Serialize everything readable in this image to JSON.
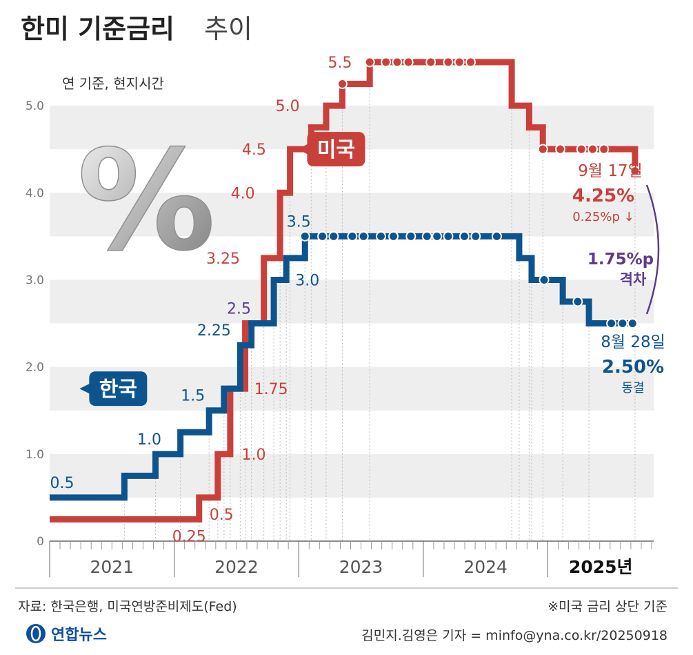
{
  "header": {
    "title_bold": "한미 기준금리",
    "title_light": "추이"
  },
  "note_unit": "연 기준, 현지시간",
  "percent_symbol": "%",
  "footer": {
    "source": "자료: 한국은행, 미국연방준비제도(Fed)",
    "footnote": "※미국 금리 상단 기준",
    "agency": "연합뉴스",
    "credit": "김민지.김영은 기자 = minfo@yna.co.kr/20250918"
  },
  "chart_data": {
    "type": "line",
    "step": true,
    "title": "한미 기준금리 추이",
    "ylim": [
      0,
      5.5
    ],
    "yticks": [
      "0",
      "1.0",
      "2.0",
      "3.0",
      "4.0",
      "5.0"
    ],
    "xlim": [
      2021.0,
      2025.85
    ],
    "x_categories": [
      "2021",
      "2022",
      "2023",
      "2024",
      "2025년"
    ],
    "grid": "horizontal bands",
    "colors": {
      "us": "#c9403b",
      "korea": "#0d548f",
      "gap": "#5c3c8a",
      "band": "#eeeeee"
    },
    "series": [
      {
        "name": "미국",
        "points": [
          {
            "x": 2021.0,
            "y": 0.25
          },
          {
            "x": 2022.2,
            "y": 0.5
          },
          {
            "x": 2022.35,
            "y": 1.0
          },
          {
            "x": 2022.45,
            "y": 1.75
          },
          {
            "x": 2022.57,
            "y": 2.5
          },
          {
            "x": 2022.72,
            "y": 3.25
          },
          {
            "x": 2022.85,
            "y": 4.0
          },
          {
            "x": 2022.93,
            "y": 4.5
          },
          {
            "x": 2023.1,
            "y": 4.75
          },
          {
            "x": 2023.22,
            "y": 5.0
          },
          {
            "x": 2023.35,
            "y": 5.25
          },
          {
            "x": 2023.57,
            "y": 5.5
          },
          {
            "x": 2024.71,
            "y": 5.0
          },
          {
            "x": 2024.85,
            "y": 4.75
          },
          {
            "x": 2024.96,
            "y": 4.5
          },
          {
            "x": 2025.7,
            "y": 4.25
          }
        ],
        "dots": [
          {
            "x": 2023.35,
            "y": 5.25
          },
          {
            "x": 2023.57,
            "y": 5.5
          },
          {
            "x": 2023.7,
            "y": 5.5
          },
          {
            "x": 2023.79,
            "y": 5.5
          },
          {
            "x": 2023.88,
            "y": 5.5
          },
          {
            "x": 2024.06,
            "y": 5.5
          },
          {
            "x": 2024.2,
            "y": 5.5
          },
          {
            "x": 2024.29,
            "y": 5.5
          },
          {
            "x": 2024.38,
            "y": 5.5
          },
          {
            "x": 2024.96,
            "y": 4.5
          },
          {
            "x": 2025.1,
            "y": 4.5
          },
          {
            "x": 2025.27,
            "y": 4.5
          },
          {
            "x": 2025.36,
            "y": 4.5
          },
          {
            "x": 2025.45,
            "y": 4.5
          },
          {
            "x": 2025.7,
            "y": 4.25
          }
        ]
      },
      {
        "name": "한국",
        "points": [
          {
            "x": 2021.0,
            "y": 0.5
          },
          {
            "x": 2021.6,
            "y": 0.75
          },
          {
            "x": 2021.85,
            "y": 1.0
          },
          {
            "x": 2022.05,
            "y": 1.25
          },
          {
            "x": 2022.28,
            "y": 1.5
          },
          {
            "x": 2022.4,
            "y": 1.75
          },
          {
            "x": 2022.53,
            "y": 2.25
          },
          {
            "x": 2022.62,
            "y": 2.5
          },
          {
            "x": 2022.8,
            "y": 3.0
          },
          {
            "x": 2022.9,
            "y": 3.25
          },
          {
            "x": 2023.05,
            "y": 3.5
          },
          {
            "x": 2024.77,
            "y": 3.25
          },
          {
            "x": 2024.87,
            "y": 3.0
          },
          {
            "x": 2025.12,
            "y": 2.75
          },
          {
            "x": 2025.33,
            "y": 2.5
          },
          {
            "x": 2025.7,
            "y": 2.5
          }
        ],
        "dots": [
          {
            "x": 2023.05,
            "y": 3.5
          },
          {
            "x": 2023.19,
            "y": 3.5
          },
          {
            "x": 2023.28,
            "y": 3.5
          },
          {
            "x": 2023.43,
            "y": 3.5
          },
          {
            "x": 2023.52,
            "y": 3.5
          },
          {
            "x": 2023.66,
            "y": 3.5
          },
          {
            "x": 2023.76,
            "y": 3.5
          },
          {
            "x": 2023.9,
            "y": 3.5
          },
          {
            "x": 2024.03,
            "y": 3.5
          },
          {
            "x": 2024.11,
            "y": 3.5
          },
          {
            "x": 2024.2,
            "y": 3.5
          },
          {
            "x": 2024.33,
            "y": 3.5
          },
          {
            "x": 2024.42,
            "y": 3.5
          },
          {
            "x": 2024.59,
            "y": 3.5
          },
          {
            "x": 2024.97,
            "y": 3.0
          },
          {
            "x": 2025.24,
            "y": 2.75
          },
          {
            "x": 2025.51,
            "y": 2.5
          },
          {
            "x": 2025.6,
            "y": 2.5
          },
          {
            "x": 2025.68,
            "y": 2.5
          }
        ]
      }
    ],
    "value_labels": [
      {
        "series": "미국",
        "text": "0.25",
        "x": 2022.12,
        "y": 0.25,
        "pos": "below"
      },
      {
        "series": "미국",
        "text": "0.5",
        "x": 2022.38,
        "y": 0.5,
        "pos": "below"
      },
      {
        "series": "미국",
        "text": "1.0",
        "x": 2022.52,
        "y": 1.0,
        "pos": "right"
      },
      {
        "series": "미국",
        "text": "1.75",
        "x": 2022.62,
        "y": 1.75,
        "pos": "right"
      },
      {
        "series": "미국",
        "text": "3.25",
        "x": 2022.55,
        "y": 3.25,
        "pos": "left"
      },
      {
        "series": "미국",
        "text": "4.0",
        "x": 2022.67,
        "y": 4.0,
        "pos": "left"
      },
      {
        "series": "미국",
        "text": "4.5",
        "x": 2022.76,
        "y": 4.5,
        "pos": "left"
      },
      {
        "series": "미국",
        "text": "5.0",
        "x": 2023.03,
        "y": 5.0,
        "pos": "left"
      },
      {
        "series": "미국",
        "text": "5.5",
        "x": 2023.45,
        "y": 5.5,
        "pos": "left"
      },
      {
        "series": "한국",
        "text": "0.5",
        "x": 2021.1,
        "y": 0.5,
        "pos": "above"
      },
      {
        "series": "한국",
        "text": "1.0",
        "x": 2021.8,
        "y": 1.0,
        "pos": "above"
      },
      {
        "series": "한국",
        "text": "1.5",
        "x": 2022.15,
        "y": 1.5,
        "pos": "above"
      },
      {
        "series": "한국",
        "text": "2.25",
        "x": 2022.32,
        "y": 2.25,
        "pos": "above"
      },
      {
        "series": "한국",
        "text": "2.5",
        "x": 2022.52,
        "y": 2.5,
        "pos": "above",
        "color": "gap"
      },
      {
        "series": "한국",
        "text": "3.0",
        "x": 2022.95,
        "y": 3.0,
        "pos": "right"
      },
      {
        "series": "한국",
        "text": "3.5",
        "x": 2023.0,
        "y": 3.5,
        "pos": "above"
      }
    ],
    "series_tags": [
      {
        "series": "미국",
        "text": "미국",
        "x": 2023.3,
        "y": 4.5
      },
      {
        "series": "한국",
        "text": "한국",
        "x": 2021.55,
        "y": 1.75
      }
    ],
    "annotations": [
      {
        "series": "미국",
        "lines": [
          "9월 17일",
          "4.25%",
          "0.25%p ↓"
        ]
      },
      {
        "series": "한국",
        "lines": [
          "8월 28일",
          "2.50%",
          "동결"
        ]
      },
      {
        "series": "gap",
        "lines": [
          "1.75%p",
          "격차"
        ]
      }
    ]
  }
}
